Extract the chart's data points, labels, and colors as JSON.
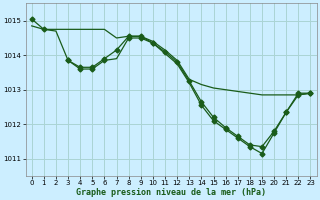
{
  "title": "Graphe pression niveau de la mer (hPa)",
  "bg_color": "#cceeff",
  "grid_color": "#aad4d4",
  "line_color": "#1a5c1a",
  "xlim": [
    -0.5,
    23.5
  ],
  "ylim": [
    1010.5,
    1015.5
  ],
  "yticks": [
    1011,
    1012,
    1013,
    1014,
    1015
  ],
  "xticks": [
    0,
    1,
    2,
    3,
    4,
    5,
    6,
    7,
    8,
    9,
    10,
    11,
    12,
    13,
    14,
    15,
    16,
    17,
    18,
    19,
    20,
    21,
    22,
    23
  ],
  "line1_x": [
    0,
    1,
    2,
    3,
    4,
    5,
    6,
    7,
    8,
    9,
    10,
    11,
    12,
    13,
    14,
    15,
    16,
    17,
    18,
    19,
    20,
    21,
    22,
    23
  ],
  "line1_y": [
    1014.85,
    1014.75,
    1014.75,
    1014.75,
    1014.75,
    1014.75,
    1014.75,
    1014.5,
    1014.55,
    1014.55,
    1014.4,
    1014.15,
    1013.85,
    1013.3,
    1013.15,
    1013.05,
    1013.0,
    1012.95,
    1012.9,
    1012.85,
    1012.85,
    1012.85,
    1012.85,
    1012.9
  ],
  "line2_x": [
    0,
    1,
    2,
    3,
    4,
    5,
    6,
    7,
    8,
    9,
    10,
    11,
    12,
    13,
    14,
    15,
    16,
    17,
    18,
    19,
    20,
    21,
    22,
    23
  ],
  "line2_y": [
    1015.05,
    1014.75,
    1014.7,
    1013.85,
    1013.65,
    1013.65,
    1013.9,
    1014.15,
    1014.55,
    1014.55,
    1014.35,
    1014.1,
    1013.8,
    1013.25,
    1012.65,
    1012.2,
    1011.9,
    1011.65,
    1011.4,
    1011.35,
    1011.8,
    1012.35,
    1012.9,
    1012.9
  ],
  "line2_markers_x": [
    0,
    1,
    3,
    4,
    5,
    6,
    7,
    8,
    9,
    10,
    11,
    12,
    13,
    14,
    15,
    16,
    17,
    18,
    19,
    20,
    21,
    22,
    23
  ],
  "line2_markers_y": [
    1015.05,
    1014.75,
    1013.85,
    1013.65,
    1013.65,
    1013.9,
    1014.15,
    1014.55,
    1014.55,
    1014.35,
    1014.1,
    1013.8,
    1013.25,
    1012.65,
    1012.2,
    1011.9,
    1011.65,
    1011.4,
    1011.35,
    1011.8,
    1012.35,
    1012.9,
    1012.9
  ],
  "line3_x": [
    3,
    4,
    5,
    6,
    7,
    8,
    9,
    10,
    11,
    12,
    13,
    14,
    15,
    16,
    17,
    18,
    19,
    20,
    21,
    22,
    23
  ],
  "line3_y": [
    1013.85,
    1013.6,
    1013.6,
    1013.85,
    1013.9,
    1014.5,
    1014.5,
    1014.35,
    1014.05,
    1013.75,
    1013.2,
    1012.55,
    1012.1,
    1011.85,
    1011.6,
    1011.35,
    1011.15,
    1011.75,
    1012.35,
    1012.85,
    1012.9
  ],
  "line3_markers_x": [
    3,
    4,
    5,
    6,
    8,
    9,
    10,
    14,
    15,
    16,
    17,
    18,
    19,
    20,
    21,
    22,
    23
  ],
  "line3_markers_y": [
    1013.85,
    1013.6,
    1013.6,
    1013.85,
    1014.5,
    1014.5,
    1014.35,
    1012.55,
    1012.1,
    1011.85,
    1011.6,
    1011.35,
    1011.15,
    1011.75,
    1012.35,
    1012.85,
    1012.9
  ]
}
